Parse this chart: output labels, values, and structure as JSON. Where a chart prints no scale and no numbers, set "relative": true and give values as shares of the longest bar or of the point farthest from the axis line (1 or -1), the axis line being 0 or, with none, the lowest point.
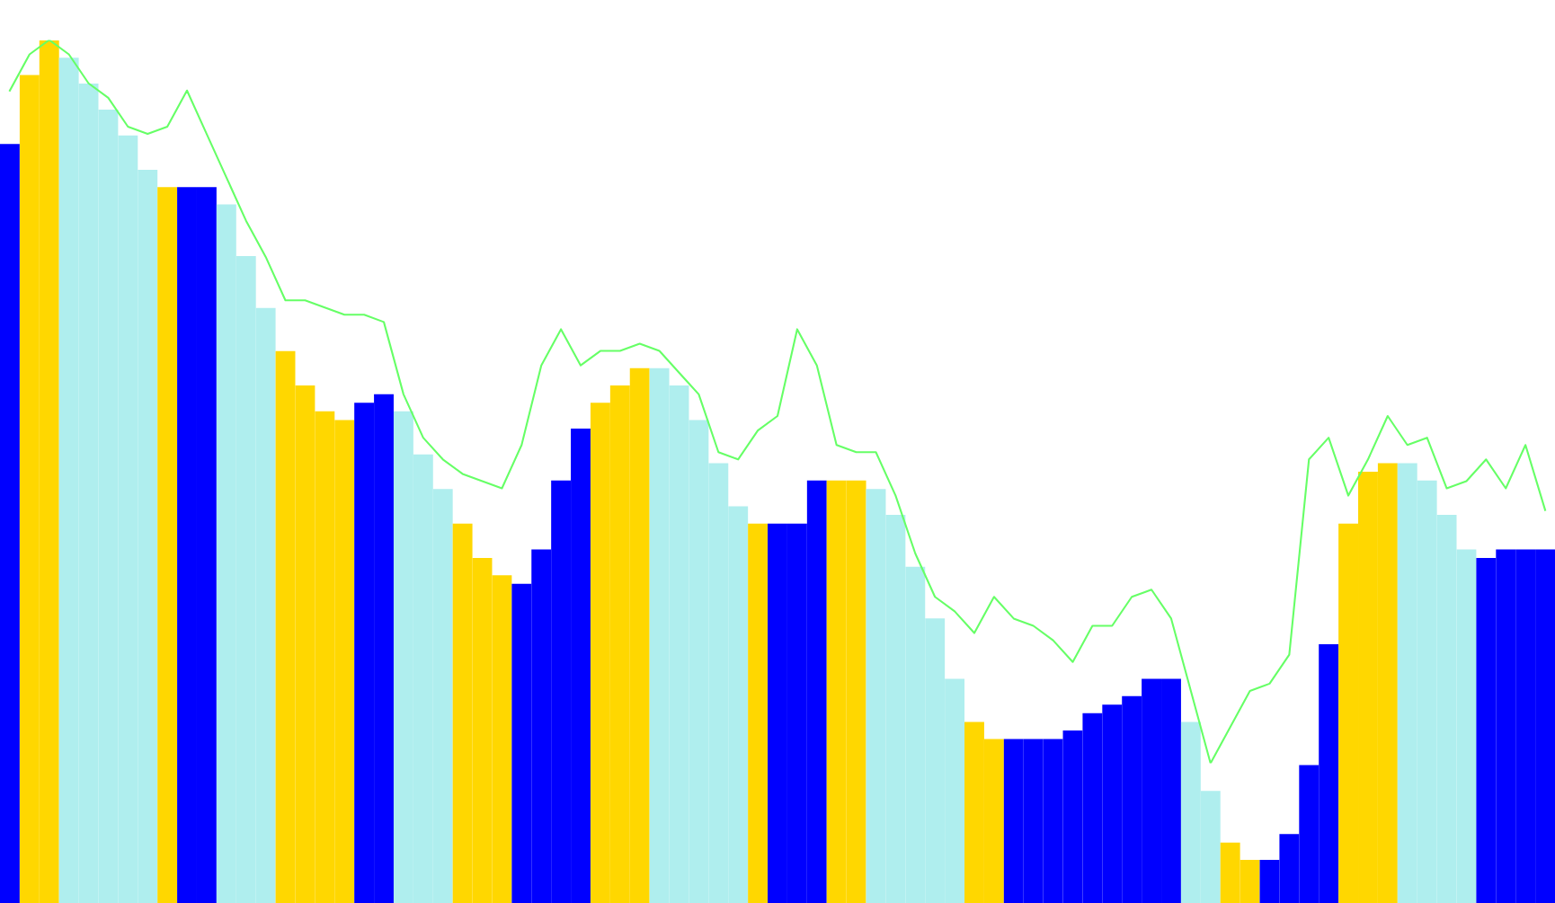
{
  "chart_data": [
    {
      "type": "bar",
      "relative": true,
      "categories": [
        null,
        null,
        null,
        null,
        null,
        null,
        null,
        null,
        null,
        null,
        null,
        null,
        null,
        null,
        null,
        null,
        null,
        null,
        null,
        null,
        null,
        null,
        null,
        null,
        null,
        null,
        null,
        null,
        null,
        null,
        null,
        null,
        null,
        null,
        null,
        null,
        null,
        null,
        null,
        null,
        null,
        null,
        null,
        null,
        null,
        null,
        null,
        null,
        null,
        null,
        null,
        null,
        null,
        null,
        null,
        null,
        null,
        null,
        null,
        null,
        null,
        null,
        null,
        null,
        null,
        null,
        null,
        null,
        null,
        null,
        null,
        null,
        null,
        null,
        null,
        null,
        null,
        null,
        null
      ],
      "values": [
        0.88,
        0.96,
        1.0,
        0.98,
        0.95,
        0.92,
        0.89,
        0.85,
        0.83,
        0.83,
        0.83,
        0.81,
        0.75,
        0.69,
        0.64,
        0.6,
        0.57,
        0.56,
        0.58,
        0.59,
        0.57,
        0.52,
        0.48,
        0.44,
        0.4,
        0.38,
        0.37,
        0.41,
        0.49,
        0.55,
        0.58,
        0.6,
        0.62,
        0.62,
        0.6,
        0.56,
        0.51,
        0.46,
        0.44,
        0.44,
        0.44,
        0.49,
        0.49,
        0.49,
        0.48,
        0.45,
        0.39,
        0.33,
        0.26,
        0.21,
        0.19,
        0.19,
        0.19,
        0.19,
        0.2,
        0.22,
        0.23,
        0.24,
        0.26,
        0.26,
        0.21,
        0.13,
        0.07,
        0.05,
        0.05,
        0.08,
        0.16,
        0.3,
        0.44,
        0.5,
        0.51,
        0.51,
        0.49,
        0.45,
        0.41,
        0.4,
        0.41,
        0.41,
        0.41
      ],
      "colors": [
        "#0000ff",
        "#ffd700",
        "#ffd700",
        "#afeeee",
        "#afeeee",
        "#afeeee",
        "#afeeee",
        "#afeeee",
        "#ffd700",
        "#0000ff",
        "#0000ff",
        "#afeeee",
        "#afeeee",
        "#afeeee",
        "#ffd700",
        "#ffd700",
        "#ffd700",
        "#ffd700",
        "#0000ff",
        "#0000ff",
        "#afeeee",
        "#afeeee",
        "#afeeee",
        "#ffd700",
        "#ffd700",
        "#ffd700",
        "#0000ff",
        "#0000ff",
        "#0000ff",
        "#0000ff",
        "#ffd700",
        "#ffd700",
        "#ffd700",
        "#afeeee",
        "#afeeee",
        "#afeeee",
        "#afeeee",
        "#afeeee",
        "#ffd700",
        "#0000ff",
        "#0000ff",
        "#0000ff",
        "#ffd700",
        "#ffd700",
        "#afeeee",
        "#afeeee",
        "#afeeee",
        "#afeeee",
        "#afeeee",
        "#ffd700",
        "#ffd700",
        "#0000ff",
        "#0000ff",
        "#0000ff",
        "#0000ff",
        "#0000ff",
        "#0000ff",
        "#0000ff",
        "#0000ff",
        "#0000ff",
        "#afeeee",
        "#afeeee",
        "#ffd700",
        "#ffd700",
        "#0000ff",
        "#0000ff",
        "#0000ff",
        "#0000ff",
        "#ffd700",
        "#ffd700",
        "#ffd700",
        "#afeeee",
        "#afeeee",
        "#afeeee",
        "#afeeee",
        "#0000ff",
        "#0000ff",
        "#0000ff",
        "#0000ff"
      ]
    },
    {
      "type": "line",
      "relative": true,
      "categories": [
        null,
        null,
        null,
        null,
        null,
        null,
        null,
        null,
        null,
        null,
        null,
        null,
        null,
        null,
        null,
        null,
        null,
        null,
        null,
        null,
        null,
        null,
        null,
        null,
        null,
        null,
        null,
        null,
        null,
        null,
        null,
        null,
        null,
        null,
        null,
        null,
        null,
        null,
        null,
        null,
        null,
        null,
        null,
        null,
        null,
        null,
        null,
        null,
        null,
        null,
        null,
        null,
        null,
        null,
        null,
        null,
        null,
        null,
        null,
        null,
        null,
        null,
        null,
        null,
        null,
        null,
        null,
        null,
        null,
        null,
        null,
        null,
        null,
        null,
        null,
        null,
        null,
        null,
        null
      ],
      "series": [
        {
          "color": "#66ff66",
          "values": [
            0.93,
            0.98,
            1.0,
            0.98,
            0.94,
            0.92,
            0.88,
            0.87,
            0.88,
            0.93,
            0.87,
            0.81,
            0.75,
            0.7,
            0.64,
            0.64,
            0.63,
            0.62,
            0.62,
            0.61,
            0.51,
            0.45,
            0.42,
            0.4,
            0.39,
            0.38,
            0.44,
            0.55,
            0.6,
            0.55,
            0.57,
            0.57,
            0.58,
            0.57,
            0.54,
            0.51,
            0.43,
            0.42,
            0.46,
            0.48,
            0.6,
            0.55,
            0.44,
            0.43,
            0.43,
            0.37,
            0.29,
            0.23,
            0.21,
            0.18,
            0.23,
            0.2,
            0.19,
            0.17,
            0.14,
            0.19,
            0.19,
            0.23,
            0.24,
            0.2,
            0.1,
            0.0,
            0.05,
            0.1,
            0.11,
            0.15,
            0.42,
            0.45,
            0.37,
            0.42,
            0.48,
            0.44,
            0.45,
            0.38,
            0.39,
            0.42,
            0.38,
            0.44,
            0.35
          ]
        }
      ]
    }
  ]
}
